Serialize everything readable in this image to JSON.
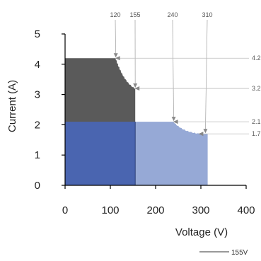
{
  "chart_data": {
    "type": "area",
    "xlabel": "Voltage (V)",
    "ylabel": "Current (A)",
    "xlim": [
      0,
      400
    ],
    "ylim": [
      0,
      5
    ],
    "x_ticks": [
      "0",
      "100",
      "200",
      "300",
      "400"
    ],
    "y_ticks": [
      "0",
      "1",
      "2",
      "3",
      "4",
      "5"
    ],
    "grid": false,
    "regions": [
      {
        "name": "",
        "color": "#5a5a5a",
        "x": [
          0,
          155
        ],
        "y": [
          0,
          4.2
        ]
      },
      {
        "name": "",
        "color": "#4a65b0",
        "x": [
          0,
          155
        ],
        "y": [
          0,
          2.1
        ]
      },
      {
        "name": "",
        "color": "#96a9d6",
        "x": [
          155,
          315
        ],
        "y": [
          0,
          2.1
        ]
      }
    ],
    "boundary_curves": [
      {
        "points": [
          [
            112,
            4.2
          ],
          [
            120,
            4.2
          ],
          [
            155,
            3.2
          ]
        ]
      },
      {
        "points": [
          [
            155,
            2.1
          ],
          [
            240,
            2.1
          ],
          [
            310,
            1.7
          ],
          [
            315,
            1.7
          ]
        ]
      }
    ],
    "top_annotations": [
      {
        "label": "120",
        "x": 120,
        "y": 4.2
      },
      {
        "label": "155",
        "x": 155,
        "y": 3.2
      },
      {
        "label": "240",
        "x": 240,
        "y": 2.1
      },
      {
        "label": "310",
        "x": 310,
        "y": 1.7
      }
    ],
    "right_annotations": [
      {
        "label": "4.2",
        "y": 4.2
      },
      {
        "label": "3.2",
        "y": 3.2
      },
      {
        "label": "2.1",
        "y": 2.1
      },
      {
        "label": "1.7",
        "y": 1.7
      }
    ],
    "legend": [
      {
        "label": "155V",
        "color": "#333333",
        "placement": "bottom-right"
      }
    ]
  }
}
